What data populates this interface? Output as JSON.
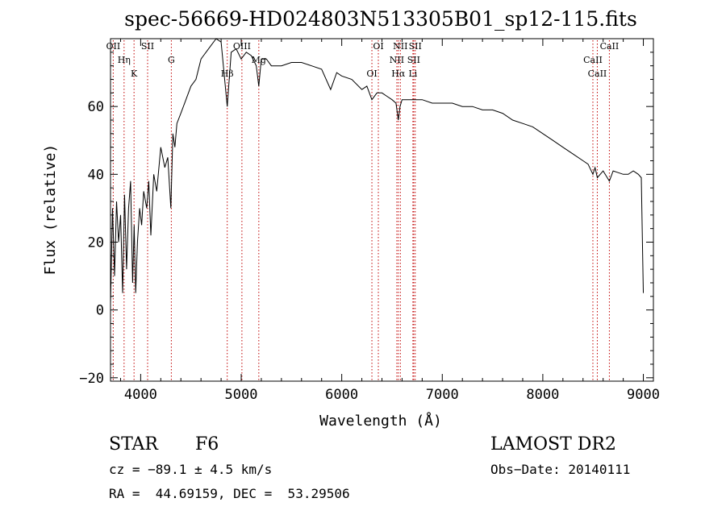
{
  "chart_data": {
    "type": "line",
    "title": "spec-56669-HD024803N513305B01_sp12-115.fits",
    "xlabel": "Wavelength (Å)",
    "ylabel": "Flux (relative)",
    "xlim": [
      3700,
      9100
    ],
    "ylim": [
      -21,
      80
    ],
    "x_ticks": [
      4000,
      5000,
      6000,
      7000,
      8000,
      9000
    ],
    "y_ticks": [
      -20,
      0,
      20,
      40,
      60
    ],
    "x_tick_labels": [
      "4000",
      "5000",
      "6000",
      "7000",
      "8000",
      "9000"
    ],
    "y_tick_labels": [
      "−20",
      "0",
      "20",
      "40",
      "60"
    ],
    "grid": false,
    "series": [
      {
        "x": [
          3700,
          3720,
          3740,
          3760,
          3780,
          3800,
          3820,
          3840,
          3860,
          3880,
          3900,
          3920,
          3935,
          3950,
          3968,
          3990,
          4010,
          4030,
          4060,
          4080,
          4101,
          4130,
          4160,
          4200,
          4240,
          4270,
          4300,
          4320,
          4340,
          4360,
          4400,
          4450,
          4500,
          4550,
          4600,
          4650,
          4700,
          4750,
          4800,
          4861,
          4900,
          4950,
          5000,
          5050,
          5100,
          5150,
          5175,
          5200,
          5250,
          5300,
          5400,
          5500,
          5600,
          5700,
          5800,
          5890,
          5950,
          6000,
          6100,
          6200,
          6250,
          6300,
          6350,
          6400,
          6450,
          6500,
          6540,
          6563,
          6580,
          6600,
          6650,
          6700,
          6750,
          6800,
          6900,
          7000,
          7100,
          7200,
          7300,
          7400,
          7500,
          7600,
          7700,
          7800,
          7900,
          8000,
          8100,
          8200,
          8300,
          8400,
          8450,
          8498,
          8520,
          8542,
          8600,
          8662,
          8700,
          8800,
          8850,
          8900,
          8950,
          8980,
          9000
        ],
        "y": [
          2,
          30,
          10,
          32,
          20,
          28,
          5,
          34,
          12,
          30,
          38,
          8,
          25,
          5,
          20,
          30,
          25,
          35,
          30,
          38,
          22,
          40,
          35,
          48,
          42,
          45,
          30,
          52,
          48,
          55,
          58,
          62,
          66,
          68,
          74,
          76,
          78,
          80,
          79,
          60,
          76,
          77,
          74,
          76,
          75,
          72,
          66,
          74,
          74,
          72,
          72,
          73,
          73,
          72,
          71,
          65,
          70,
          69,
          68,
          65,
          66,
          62,
          64,
          64,
          63,
          62,
          61,
          56,
          60,
          62,
          62,
          62,
          62,
          62,
          61,
          61,
          61,
          60,
          60,
          59,
          59,
          58,
          56,
          55,
          54,
          52,
          50,
          48,
          46,
          44,
          43,
          40,
          42,
          39,
          41,
          38,
          41,
          40,
          40,
          41,
          40,
          39,
          5
        ]
      }
    ],
    "line_markers": [
      {
        "label": "OII",
        "x": 3727
      },
      {
        "label": "Hη",
        "x": 3835
      },
      {
        "label": "K",
        "x": 3934
      },
      {
        "label": "SII",
        "x": 4069
      },
      {
        "label": "G",
        "x": 4305
      },
      {
        "label": "Hβ",
        "x": 4861
      },
      {
        "label": "OIII",
        "x": 5007
      },
      {
        "label": "Mg",
        "x": 5175
      },
      {
        "label": "OI",
        "x": 6300
      },
      {
        "label": "OI",
        "x": 6364
      },
      {
        "label": "NII",
        "x": 6548
      },
      {
        "label": "Hα",
        "x": 6563
      },
      {
        "label": "NII",
        "x": 6583
      },
      {
        "label": "SII",
        "x": 6716
      },
      {
        "label": "Li",
        "x": 6708
      },
      {
        "label": "SII",
        "x": 6731
      },
      {
        "label": "CaII",
        "x": 8498
      },
      {
        "label": "CaII",
        "x": 8542
      },
      {
        "label": "CaII",
        "x": 8662
      }
    ],
    "colors": {
      "spectrum": "#000000",
      "markers": "#c00000",
      "axes": "#000000"
    }
  },
  "footer": {
    "class_label": "STAR",
    "subclass": "F6",
    "survey": "LAMOST DR2",
    "cz": "cz = −89.1 ± 4.5 km/s",
    "obs_date": "Obs−Date: 20140111",
    "coords": "RA =  44.69159, DEC =  53.29506"
  }
}
